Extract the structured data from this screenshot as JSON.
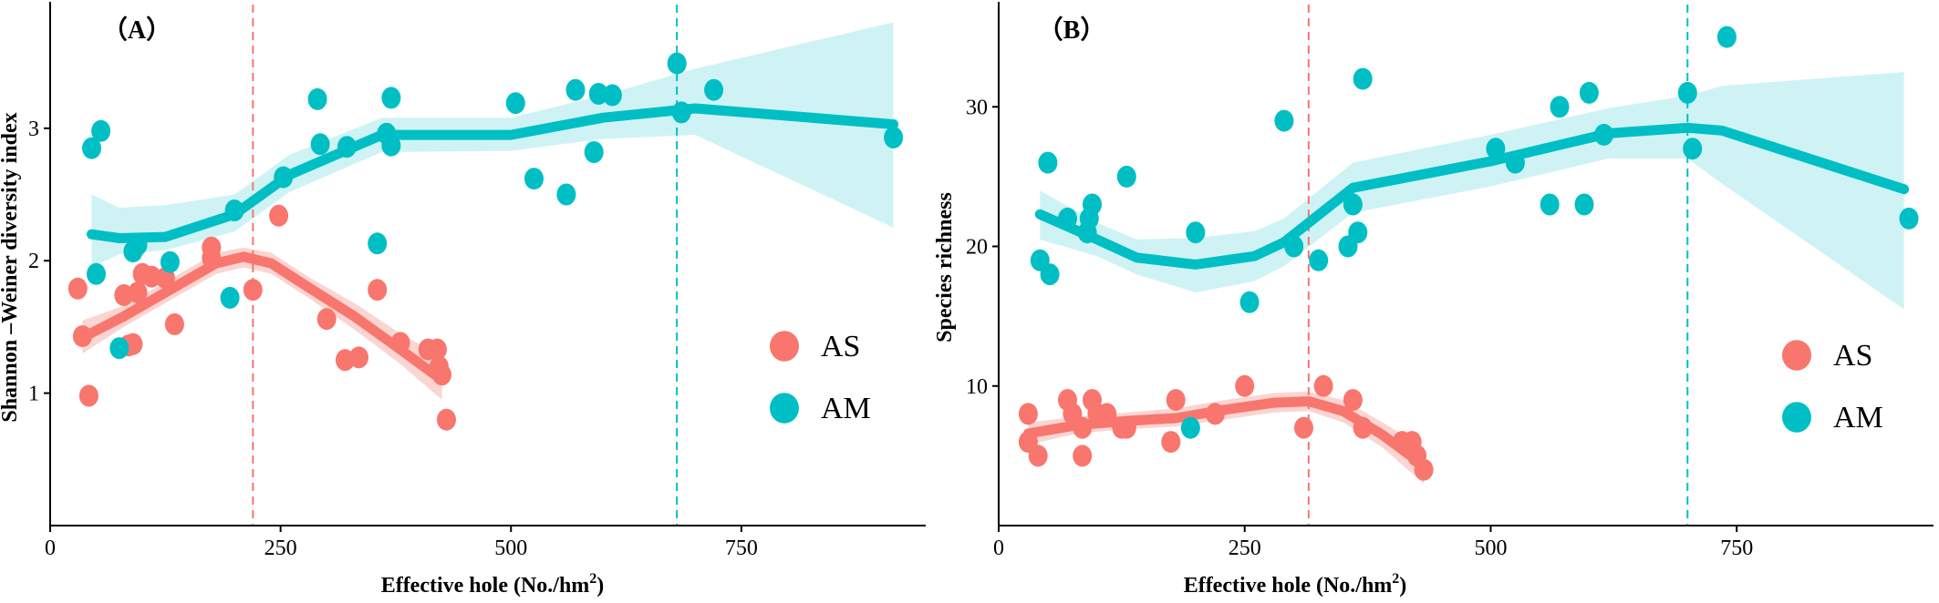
{
  "colors": {
    "as": "#F8766D",
    "as_band": "#F9C7C3",
    "am": "#00BFC4",
    "am_band": "#BFEFF1",
    "axis": "#000000"
  },
  "chart_data": [
    {
      "type": "scatter",
      "panel_label": "（A）",
      "xlabel": "Effective hole (No./hm",
      "xlabel_sup": "2",
      "xlabel_close": ")",
      "ylabel": "Shannon –Weiner diversity index",
      "xlim": [
        0,
        950
      ],
      "ylim": [
        0,
        3.9
      ],
      "xticks": [
        0,
        250,
        500,
        750
      ],
      "yticks": [
        1,
        2,
        3
      ],
      "legend_position": "right",
      "vlines": [
        {
          "series": "AS",
          "x": 220
        },
        {
          "series": "AM",
          "x": 680
        }
      ],
      "series": [
        {
          "name": "AS",
          "points": [
            [
              30,
              1.79
            ],
            [
              35,
              1.43
            ],
            [
              42,
              0.98
            ],
            [
              80,
              1.74
            ],
            [
              85,
              1.36
            ],
            [
              90,
              1.37
            ],
            [
              95,
              1.76
            ],
            [
              100,
              1.9
            ],
            [
              110,
              1.88
            ],
            [
              125,
              1.87
            ],
            [
              135,
              1.52
            ],
            [
              175,
              2.1
            ],
            [
              175,
              2.02
            ],
            [
              220,
              1.78
            ],
            [
              248,
              2.34
            ],
            [
              300,
              1.56
            ],
            [
              320,
              1.25
            ],
            [
              335,
              1.27
            ],
            [
              355,
              1.78
            ],
            [
              380,
              1.38
            ],
            [
              410,
              1.33
            ],
            [
              420,
              1.33
            ],
            [
              422,
              1.2
            ],
            [
              425,
              1.14
            ],
            [
              430,
              0.8
            ]
          ],
          "fit_x": [
            35,
            80,
            130,
            180,
            210,
            240,
            280,
            330,
            380,
            425
          ],
          "fit_y": [
            1.42,
            1.58,
            1.78,
            1.98,
            2.03,
            1.98,
            1.8,
            1.58,
            1.33,
            1.1
          ],
          "band_lo": [
            1.3,
            1.5,
            1.7,
            1.9,
            1.95,
            1.9,
            1.72,
            1.48,
            1.22,
            0.95
          ],
          "band_hi": [
            1.55,
            1.66,
            1.86,
            2.06,
            2.1,
            2.06,
            1.88,
            1.68,
            1.45,
            1.28
          ]
        },
        {
          "name": "AM",
          "points": [
            [
              45,
              2.85
            ],
            [
              50,
              1.9
            ],
            [
              55,
              2.98
            ],
            [
              75,
              1.34
            ],
            [
              90,
              2.07
            ],
            [
              95,
              2.12
            ],
            [
              130,
              1.99
            ],
            [
              195,
              1.72
            ],
            [
              200,
              2.38
            ],
            [
              253,
              2.63
            ],
            [
              290,
              3.22
            ],
            [
              293,
              2.88
            ],
            [
              322,
              2.86
            ],
            [
              355,
              2.13
            ],
            [
              365,
              2.96
            ],
            [
              370,
              2.87
            ],
            [
              370,
              3.23
            ],
            [
              505,
              3.19
            ],
            [
              525,
              2.62
            ],
            [
              560,
              2.5
            ],
            [
              570,
              3.29
            ],
            [
              590,
              2.82
            ],
            [
              595,
              3.26
            ],
            [
              610,
              3.25
            ],
            [
              680,
              3.49
            ],
            [
              685,
              3.12
            ],
            [
              720,
              3.29
            ],
            [
              915,
              2.93
            ]
          ],
          "fit_x": [
            45,
            75,
            125,
            200,
            260,
            360,
            500,
            600,
            700,
            915
          ],
          "fit_y": [
            2.2,
            2.17,
            2.18,
            2.35,
            2.65,
            2.95,
            2.95,
            3.08,
            3.15,
            3.03
          ],
          "band_lo": [
            1.95,
            2.05,
            2.08,
            2.22,
            2.52,
            2.82,
            2.83,
            2.92,
            2.95,
            2.25
          ],
          "band_hi": [
            2.5,
            2.4,
            2.42,
            2.5,
            2.8,
            3.08,
            3.08,
            3.25,
            3.45,
            3.8
          ]
        }
      ]
    },
    {
      "type": "scatter",
      "panel_label": "（B）",
      "xlabel": "Effective hole (No./hm",
      "xlabel_sup": "2",
      "xlabel_close": ")",
      "ylabel": "Species richness",
      "xlim": [
        0,
        950
      ],
      "ylim": [
        0,
        37
      ],
      "xticks": [
        0,
        250,
        500,
        750
      ],
      "yticks": [
        10,
        20,
        30
      ],
      "legend_position": "right",
      "vlines": [
        {
          "series": "AS",
          "x": 315
        },
        {
          "series": "AM",
          "x": 700
        }
      ],
      "series": [
        {
          "name": "AS",
          "points": [
            [
              30,
              8
            ],
            [
              30,
              6
            ],
            [
              40,
              5
            ],
            [
              70,
              9
            ],
            [
              75,
              8
            ],
            [
              85,
              7
            ],
            [
              85,
              5
            ],
            [
              95,
              9
            ],
            [
              100,
              8
            ],
            [
              110,
              8
            ],
            [
              125,
              7
            ],
            [
              130,
              7
            ],
            [
              175,
              6
            ],
            [
              180,
              9
            ],
            [
              220,
              8
            ],
            [
              250,
              10
            ],
            [
              310,
              7
            ],
            [
              330,
              10
            ],
            [
              360,
              9
            ],
            [
              370,
              7
            ],
            [
              410,
              6
            ],
            [
              420,
              6
            ],
            [
              425,
              5
            ],
            [
              432,
              4
            ]
          ],
          "fit_x": [
            30,
            80,
            130,
            180,
            230,
            280,
            315,
            350,
            390,
            432
          ],
          "fit_y": [
            6.6,
            7.2,
            7.5,
            7.7,
            8.3,
            8.8,
            8.9,
            8.2,
            6.5,
            4.3
          ],
          "band_lo": [
            5.8,
            6.6,
            6.9,
            7.1,
            7.6,
            8.1,
            8.2,
            7.4,
            5.6,
            3.0
          ],
          "band_hi": [
            7.4,
            7.8,
            8.1,
            8.4,
            9.0,
            9.5,
            9.6,
            9.0,
            7.4,
            5.6
          ]
        },
        {
          "name": "AM",
          "points": [
            [
              42,
              19
            ],
            [
              50,
              26
            ],
            [
              52,
              18
            ],
            [
              70,
              22
            ],
            [
              90,
              21
            ],
            [
              92,
              22
            ],
            [
              95,
              23
            ],
            [
              130,
              25
            ],
            [
              195,
              7
            ],
            [
              200,
              21
            ],
            [
              255,
              16
            ],
            [
              290,
              29
            ],
            [
              300,
              20
            ],
            [
              325,
              19
            ],
            [
              355,
              20
            ],
            [
              360,
              23
            ],
            [
              365,
              21
            ],
            [
              370,
              32
            ],
            [
              505,
              27
            ],
            [
              525,
              26
            ],
            [
              560,
              23
            ],
            [
              570,
              30
            ],
            [
              595,
              23
            ],
            [
              600,
              31
            ],
            [
              615,
              28
            ],
            [
              700,
              31
            ],
            [
              705,
              27
            ],
            [
              740,
              35
            ],
            [
              925,
              22
            ]
          ],
          "fit_x": [
            42,
            100,
            140,
            200,
            260,
            290,
            360,
            500,
            620,
            700,
            735,
            920
          ],
          "fit_y": [
            22.3,
            20.5,
            19.2,
            18.7,
            19.3,
            20.3,
            24.2,
            26.1,
            28.1,
            28.5,
            28.3,
            24.1
          ],
          "band_lo": [
            20.5,
            19.3,
            18.0,
            16.7,
            17.5,
            18.6,
            22.4,
            24.3,
            26.3,
            26.3,
            24.5,
            15.5
          ],
          "band_hi": [
            24.0,
            21.7,
            20.5,
            20.6,
            21.1,
            22.0,
            26.0,
            28.0,
            29.9,
            30.8,
            31.5,
            32.5
          ]
        }
      ]
    }
  ]
}
